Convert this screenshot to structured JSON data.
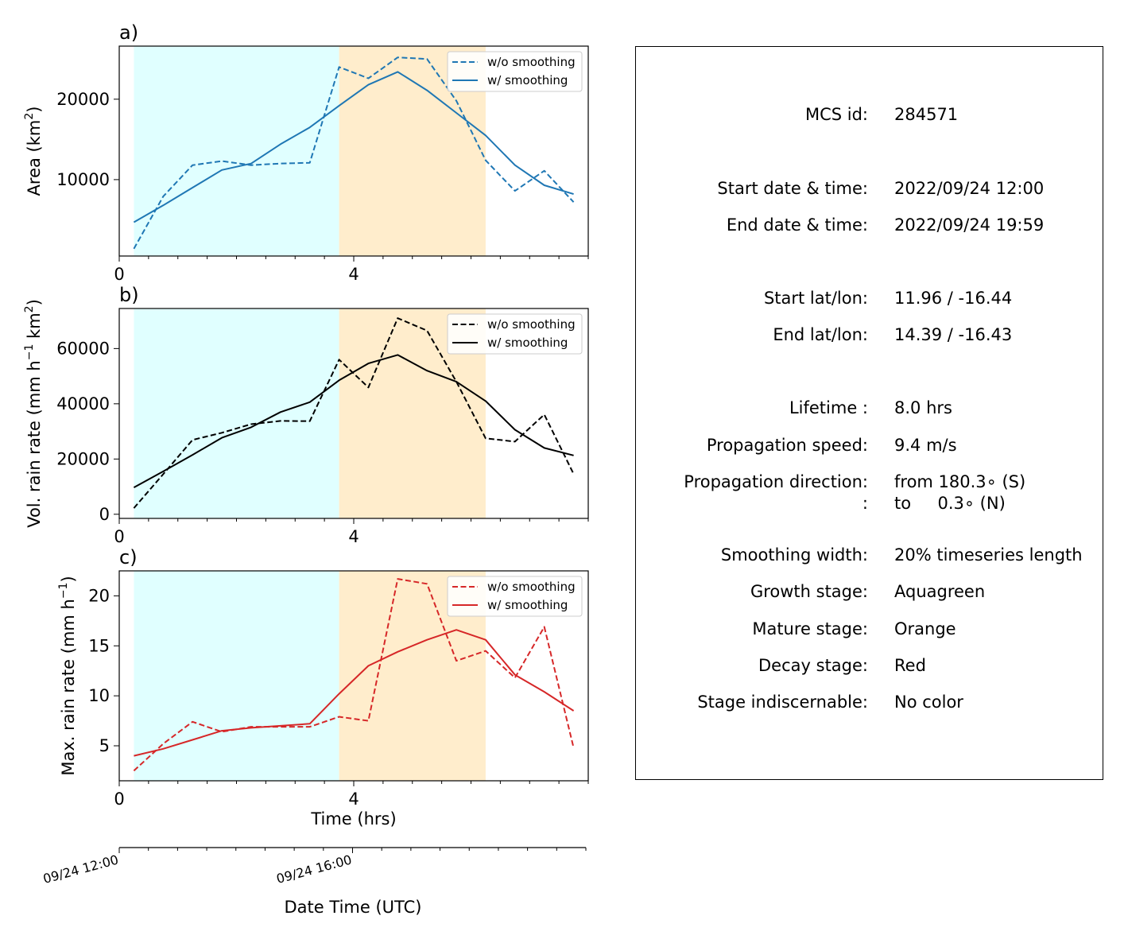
{
  "chart_data": {
    "type": "line",
    "x_hours": [
      0.25,
      0.75,
      1.25,
      1.75,
      2.25,
      2.75,
      3.25,
      3.75,
      4.25,
      4.75,
      5.25,
      5.75,
      6.25,
      6.75,
      7.25,
      7.75
    ],
    "xlim": [
      0,
      8
    ],
    "xticks": [
      0,
      4
    ],
    "xticklabels": [
      "0",
      "4"
    ],
    "xlabel": "Time (hrs)",
    "stages": [
      {
        "name": "growth",
        "start": 0.25,
        "end": 3.75,
        "color": "#e0ffff"
      },
      {
        "name": "mature",
        "start": 3.75,
        "end": 6.25,
        "color": "#ffedcc"
      }
    ],
    "panels": [
      {
        "label": "a)",
        "ylabel_main": "Area  (km",
        "ylabel_sup": "2",
        "ylabel_end": ")",
        "ylim": [
          500,
          26600
        ],
        "yticks": [
          10000,
          20000
        ],
        "color": "#1f77b4",
        "legend_loc": "upper right",
        "series": [
          {
            "name": "w/o smoothing",
            "style": "dashed",
            "values": [
              1400,
              7900,
              11800,
              12300,
              11800,
              12000,
              12100,
              24000,
              22600,
              25200,
              25000,
              19800,
              12400,
              8600,
              11100,
              7200
            ]
          },
          {
            "name": "w/ smoothing",
            "style": "solid",
            "values": [
              4700,
              6800,
              9000,
              11200,
              12000,
              14400,
              16500,
              19200,
              21800,
              23400,
              21100,
              18300,
              15500,
              11800,
              9300,
              8200
            ]
          }
        ]
      },
      {
        "label": "b)",
        "ylabel_main": "Vol. rain rate (mm h",
        "ylabel_sup1": "−1",
        "ylabel_mid": " km",
        "ylabel_sup2": "2",
        "ylabel_end": ")",
        "ylim": [
          -1500,
          74500
        ],
        "yticks": [
          0,
          20000,
          40000,
          60000
        ],
        "color": "#000000",
        "legend_loc": "upper right",
        "series": [
          {
            "name": "w/o smoothing",
            "style": "dashed",
            "values": [
              2200,
              14500,
              26900,
              29500,
              32600,
              33800,
              33700,
              56000,
              45900,
              71000,
              66500,
              48000,
              27500,
              26300,
              36100,
              14600
            ]
          },
          {
            "name": "w/ smoothing",
            "style": "solid",
            "values": [
              9700,
              15500,
              21500,
              27700,
              31500,
              37000,
              40600,
              48500,
              54600,
              57700,
              52000,
              48000,
              41000,
              30600,
              24000,
              21300
            ]
          }
        ]
      },
      {
        "label": "c)",
        "ylabel_main": "Max. rain rate  (mm h",
        "ylabel_sup": "−1",
        "ylabel_end": ")",
        "ylim": [
          1.5,
          22.5
        ],
        "yticks": [
          5,
          10,
          15,
          20
        ],
        "color": "#d62728",
        "legend_loc": "upper right",
        "series": [
          {
            "name": "w/o smoothing",
            "style": "dashed",
            "values": [
              2.5,
              5.2,
              7.4,
              6.4,
              6.9,
              6.9,
              6.9,
              7.9,
              7.5,
              21.7,
              21.2,
              13.5,
              14.5,
              11.8,
              16.9,
              4.8
            ]
          },
          {
            "name": "w/ smoothing",
            "style": "solid",
            "values": [
              4.0,
              4.7,
              5.6,
              6.5,
              6.8,
              7.0,
              7.2,
              10.2,
              13.0,
              14.4,
              15.6,
              16.6,
              15.6,
              12.1,
              10.4,
              8.5
            ]
          }
        ]
      }
    ],
    "date_axis": {
      "label": "Date Time (UTC)",
      "ticks": [
        {
          "hours": 0,
          "label": "09/24 12:00"
        },
        {
          "hours": 4,
          "label": "09/24 16:00"
        }
      ]
    }
  },
  "info": [
    {
      "label": "MCS id:",
      "value": "284571"
    },
    {
      "label": "Start date & time:",
      "value": "2022/09/24 12:00"
    },
    {
      "label": "End date & time:",
      "value": "2022/09/24 19:59"
    },
    {
      "label": "Start lat/lon:",
      "value": "11.96 / -16.44"
    },
    {
      "label": "End lat/lon:",
      "value": "14.39 / -16.43"
    },
    {
      "label": "Lifetime :",
      "value": "8.0 hrs"
    },
    {
      "label": "Propagation speed:",
      "value": "9.4 m/s"
    },
    {
      "label": "Propagation direction:",
      "value": "from 180.3∘ (S)"
    },
    {
      "label": ":",
      "value": "to     0.3∘ (N)"
    },
    {
      "label": "Smoothing width:",
      "value": "20% timeseries length"
    },
    {
      "label": "Growth stage:",
      "value": "Aquagreen"
    },
    {
      "label": "Mature stage:",
      "value": "Orange"
    },
    {
      "label": "Decay stage:",
      "value": "Red"
    },
    {
      "label": "Stage indiscernable:",
      "value": "No color"
    }
  ]
}
